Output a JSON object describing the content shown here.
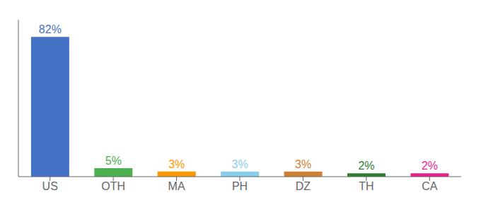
{
  "chart_data": {
    "type": "bar",
    "categories": [
      "US",
      "OTH",
      "MA",
      "PH",
      "DZ",
      "TH",
      "CA"
    ],
    "values": [
      82,
      5,
      3,
      3,
      3,
      2,
      2
    ],
    "value_labels": [
      "82%",
      "5%",
      "3%",
      "3%",
      "3%",
      "2%",
      "2%"
    ],
    "data_labels": true,
    "colors": [
      "#4472c4",
      "#4caf50",
      "#ff9800",
      "#87ceeb",
      "#cd7f32",
      "#2e7d32",
      "#e91e8c"
    ],
    "ylim": [
      0,
      92
    ],
    "tick_labels": "x",
    "grid": false
  }
}
